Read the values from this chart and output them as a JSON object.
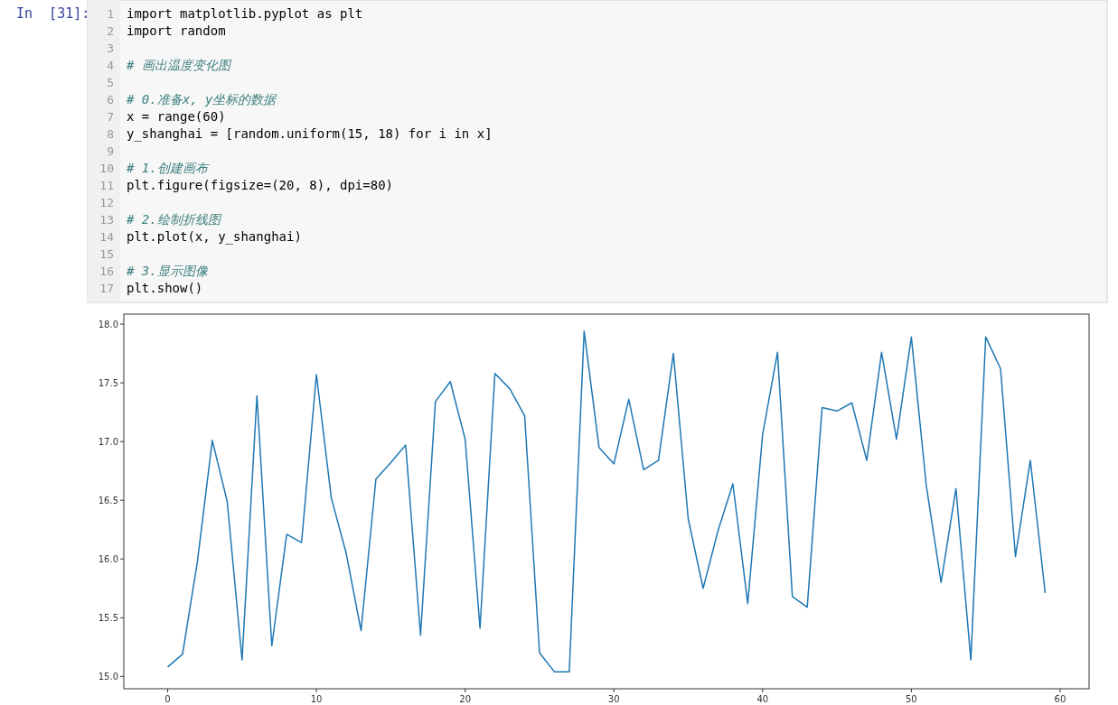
{
  "chart_data": {
    "type": "line",
    "annotations": [
      "In  [31]:",
      "1\timport matplotlib.pyplot as plt",
      "2\timport random",
      "3\t",
      "4\t# 画出温度变化图",
      "5\t",
      "6\t# 0.准备x, y坐标的数据",
      "7\tx = range(60)",
      "8\ty_shanghai = [random.uniform(15, 18) for i in x]",
      "9\t",
      "10\t# 1.创建画布",
      "11\tplt.figure(figsize=(20, 8), dpi=80)",
      "12\t",
      "13\t# 2.绘制折线图",
      "14\tplt.plot(x, y_shanghai)",
      "15\t",
      "16\t# 3.显示图像",
      "17\tplt.show()"
    ],
    "x": [
      0,
      1,
      2,
      3,
      4,
      5,
      6,
      7,
      8,
      9,
      10,
      11,
      12,
      13,
      14,
      15,
      16,
      17,
      18,
      19,
      20,
      21,
      22,
      23,
      24,
      25,
      26,
      27,
      28,
      29,
      30,
      31,
      32,
      33,
      34,
      35,
      36,
      37,
      38,
      39,
      40,
      41,
      42,
      43,
      44,
      45,
      46,
      47,
      48,
      49,
      50,
      51,
      52,
      53,
      54,
      55,
      56,
      57,
      58,
      59
    ],
    "series": [
      {
        "color": "#1f77b4",
        "values": [
          15.08,
          15.19,
          15.98,
          17.01,
          16.49,
          15.14,
          17.39,
          15.26,
          16.21,
          16.14,
          17.57,
          16.52,
          16.05,
          15.39,
          16.68,
          16.82,
          16.97,
          15.35,
          17.34,
          17.51,
          17.02,
          15.41,
          17.58,
          17.45,
          17.22,
          15.2,
          15.04,
          15.04,
          17.94,
          16.95,
          16.81,
          17.36,
          16.76,
          16.84,
          17.75,
          16.34,
          15.75,
          16.24,
          16.64,
          15.62,
          17.06,
          17.76,
          15.68,
          15.59,
          17.29,
          17.26,
          17.33,
          16.84,
          17.76,
          17.02,
          17.89,
          16.63,
          15.8,
          16.6,
          15.14,
          17.89,
          17.62,
          16.02,
          16.84,
          15.71
        ]
      }
    ],
    "xlim": [
      -2.95,
      61.95
    ],
    "xticks": [
      0,
      10,
      20,
      30,
      40,
      50,
      60
    ],
    "ylim": [
      14.895,
      18.085
    ],
    "yticks": [
      {
        "value": 15,
        "label": "15.0"
      },
      {
        "value": 15.5,
        "label": "15.5"
      },
      {
        "value": 16,
        "label": "16.0"
      },
      {
        "value": 16.5,
        "label": "16.5"
      },
      {
        "value": 17,
        "label": "17.0"
      },
      {
        "value": 17.5,
        "label": "17.5"
      },
      {
        "value": 18,
        "label": "18.0"
      }
    ]
  }
}
